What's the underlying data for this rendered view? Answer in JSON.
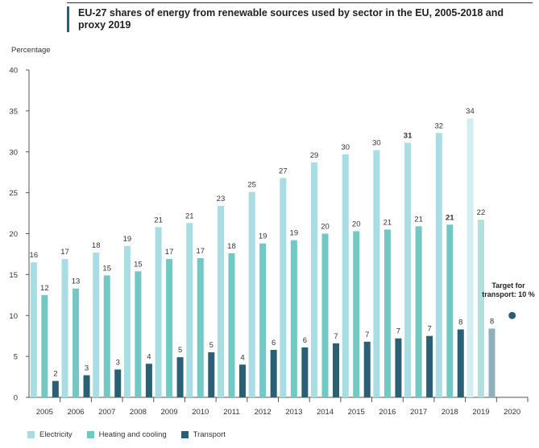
{
  "chart_data": {
    "type": "bar",
    "title": "EU-27 shares of energy from renewable sources used by sector in the EU, 2005-2018 and proxy 2019",
    "ylabel": "Percentage",
    "xlabel": "",
    "ylim": [
      0,
      40
    ],
    "yticks": [
      "0",
      "5",
      "10",
      "15",
      "20",
      "25",
      "30",
      "35",
      "40"
    ],
    "grid": false,
    "legend_position": "bottom-left",
    "categories": [
      "2005",
      "2006",
      "2007",
      "2008",
      "2009",
      "2010",
      "2011",
      "2012",
      "2013",
      "2014",
      "2015",
      "2016",
      "2017",
      "2018",
      "2019",
      "2020"
    ],
    "series": [
      {
        "name": "Electricity",
        "color": "#a8dde3",
        "proxy_color": "#d3eef1",
        "values": [
          16.5,
          16.9,
          17.7,
          18.5,
          20.8,
          21.3,
          23.4,
          25.1,
          26.8,
          28.7,
          29.7,
          30.2,
          31.1,
          32.3,
          34.1,
          null
        ],
        "labels": [
          "16",
          "17",
          "18",
          "19",
          "21",
          "21",
          "23",
          "25",
          "27",
          "29",
          "30",
          "30",
          "31",
          "32",
          "34",
          ""
        ]
      },
      {
        "name": "Heating and cooling",
        "color": "#72c8c2",
        "proxy_color": "#b3dfdc",
        "values": [
          12.5,
          13.3,
          14.9,
          15.4,
          16.9,
          17.0,
          17.6,
          18.8,
          19.2,
          20.0,
          20.3,
          20.5,
          20.9,
          21.1,
          21.7,
          null
        ],
        "labels": [
          "12",
          "13",
          "15",
          "15",
          "17",
          "17",
          "18",
          "19",
          "19",
          "20",
          "20",
          "21",
          "21",
          "21",
          "22",
          ""
        ]
      },
      {
        "name": "Transport",
        "color": "#2b5f73",
        "proxy_color": "#8fafbb",
        "values": [
          2.0,
          2.7,
          3.4,
          4.1,
          4.9,
          5.5,
          4.0,
          5.8,
          6.1,
          6.6,
          6.8,
          7.2,
          7.5,
          8.3,
          8.4,
          null
        ],
        "labels": [
          "2",
          "3",
          "3",
          "4",
          "5",
          "5",
          "4",
          "6",
          "6",
          "7",
          "7",
          "7",
          "7",
          "8",
          "8",
          ""
        ]
      }
    ],
    "proxy_category": "2019",
    "bold_labels": [
      {
        "series": 0,
        "category": "2017"
      },
      {
        "series": 1,
        "category": "2018"
      }
    ],
    "target": {
      "category": "2020",
      "value": 10,
      "label": "Target for transport: 10 %",
      "color": "#2b5f73"
    }
  }
}
